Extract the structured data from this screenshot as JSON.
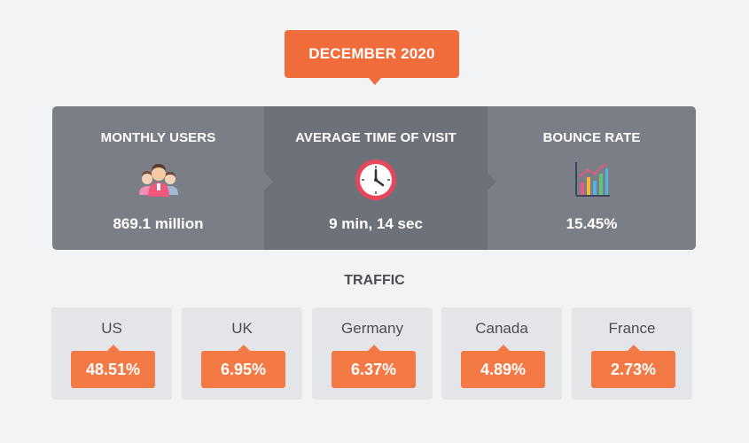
{
  "header": {
    "month_label": "DECEMBER 2020"
  },
  "stats": [
    {
      "label": "MONTHLY USERS",
      "value": "869.1 million",
      "icon": "users-group-icon"
    },
    {
      "label": "AVERAGE TIME OF VISIT",
      "value": "9 min, 14 sec",
      "icon": "clock-icon"
    },
    {
      "label": "BOUNCE RATE",
      "value": "15.45%",
      "icon": "bar-chart-icon"
    }
  ],
  "traffic": {
    "title": "TRAFFIC",
    "countries": [
      {
        "country": "US",
        "percent": "48.51%"
      },
      {
        "country": "UK",
        "percent": "6.95%"
      },
      {
        "country": "Germany",
        "percent": "6.37%"
      },
      {
        "country": "Canada",
        "percent": "4.89%"
      },
      {
        "country": "France",
        "percent": "2.73%"
      }
    ]
  },
  "colors": {
    "accent_orange": "#f06d3b",
    "badge_orange": "#f47a45",
    "panel_gray": "#7a7f87",
    "panel_gray_dark": "#6d7179",
    "card_gray": "#e4e5e8",
    "background": "#f2f3f5"
  }
}
